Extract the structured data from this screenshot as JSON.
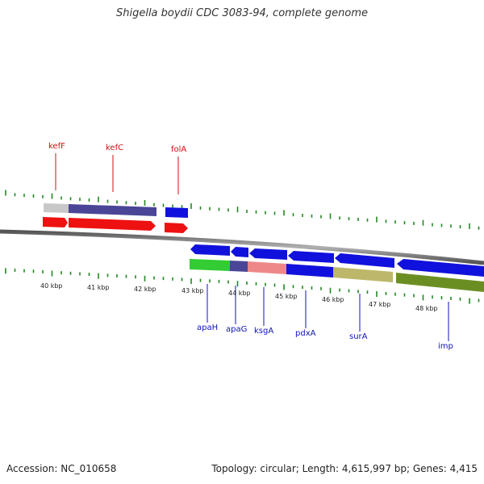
{
  "title": "Shigella boydii CDC 3083-94, complete genome",
  "footer": {
    "accession": "Accession: NC_010658",
    "topology": "Topology: circular; Length: 4,615,997 bp; Genes: 4,415"
  },
  "tick_labels": [
    "40 kbp",
    "41 kbp",
    "42 kbp",
    "43 kbp",
    "44 kbp",
    "45 kbp",
    "46 kbp",
    "47 kbp",
    "48 kbp"
  ],
  "genes_forward": [
    {
      "name": "kefF",
      "color": "#cc1111"
    },
    {
      "name": "kefC",
      "color": "#cc1111"
    },
    {
      "name": "folA",
      "color": "#cc1111"
    }
  ],
  "genes_reverse": [
    {
      "name": "apaH",
      "color": "#1111bb"
    },
    {
      "name": "apaG",
      "color": "#1111bb"
    },
    {
      "name": "ksgA",
      "color": "#1111bb"
    },
    {
      "name": "pdxA",
      "color": "#1111bb"
    },
    {
      "name": "surA",
      "color": "#1111bb"
    },
    {
      "name": "imp",
      "color": "#1111bb"
    }
  ],
  "colors": {
    "forward_gene": "#ee1111",
    "reverse_gene": "#1111dd",
    "tick": "#228822",
    "backbone": "#808080"
  }
}
